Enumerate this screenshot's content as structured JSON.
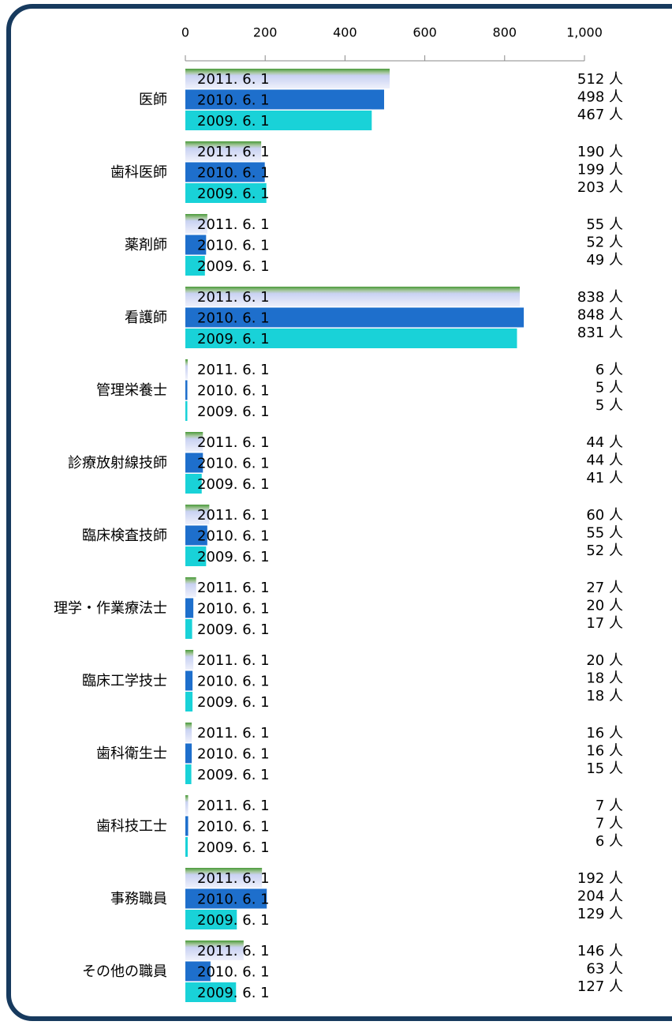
{
  "chart_data": {
    "type": "hbar",
    "categories": [
      "医師",
      "歯科医師",
      "薬剤師",
      "看護師",
      "管理栄養士",
      "診療放射線技師",
      "臨床検査技師",
      "理学・作業療法士",
      "臨床工学技士",
      "歯科衛生士",
      "歯科技工士",
      "事務職員",
      "その他の職員"
    ],
    "series": [
      {
        "name": "2011. 6. 1",
        "color": "#c9d2f2",
        "values": [
          512,
          190,
          55,
          838,
          6,
          44,
          60,
          27,
          20,
          16,
          7,
          192,
          146
        ],
        "value_labels": [
          "512 人",
          "190 人",
          "55 人",
          "838 人",
          "6 人",
          "44 人",
          "60 人",
          "27 人",
          "20 人",
          "16 人",
          "7 人",
          "192 人",
          "146 人"
        ]
      },
      {
        "name": "2010. 6. 1",
        "color": "#1e6fcc",
        "values": [
          498,
          199,
          52,
          848,
          5,
          44,
          55,
          20,
          18,
          16,
          7,
          204,
          63
        ],
        "value_labels": [
          "498 人",
          "199 人",
          "52 人",
          "848 人",
          "5 人",
          "44 人",
          "55 人",
          "20 人",
          "18 人",
          "16 人",
          "7 人",
          "204 人",
          "63 人"
        ]
      },
      {
        "name": "2009. 6. 1",
        "color": "#19d2d8",
        "values": [
          467,
          203,
          49,
          831,
          5,
          41,
          52,
          17,
          18,
          15,
          6,
          129,
          127
        ],
        "value_labels": [
          "467 人",
          "203 人",
          "49 人",
          "831 人",
          "5 人",
          "41 人",
          "52 人",
          "17 人",
          "18 人",
          "15 人",
          "6 人",
          "129 人",
          "127 人"
        ]
      }
    ],
    "xlim": [
      0,
      1000
    ],
    "xticks": [
      0,
      200,
      400,
      600,
      800,
      {
        "value": 1000,
        "label": "1,000"
      }
    ]
  }
}
